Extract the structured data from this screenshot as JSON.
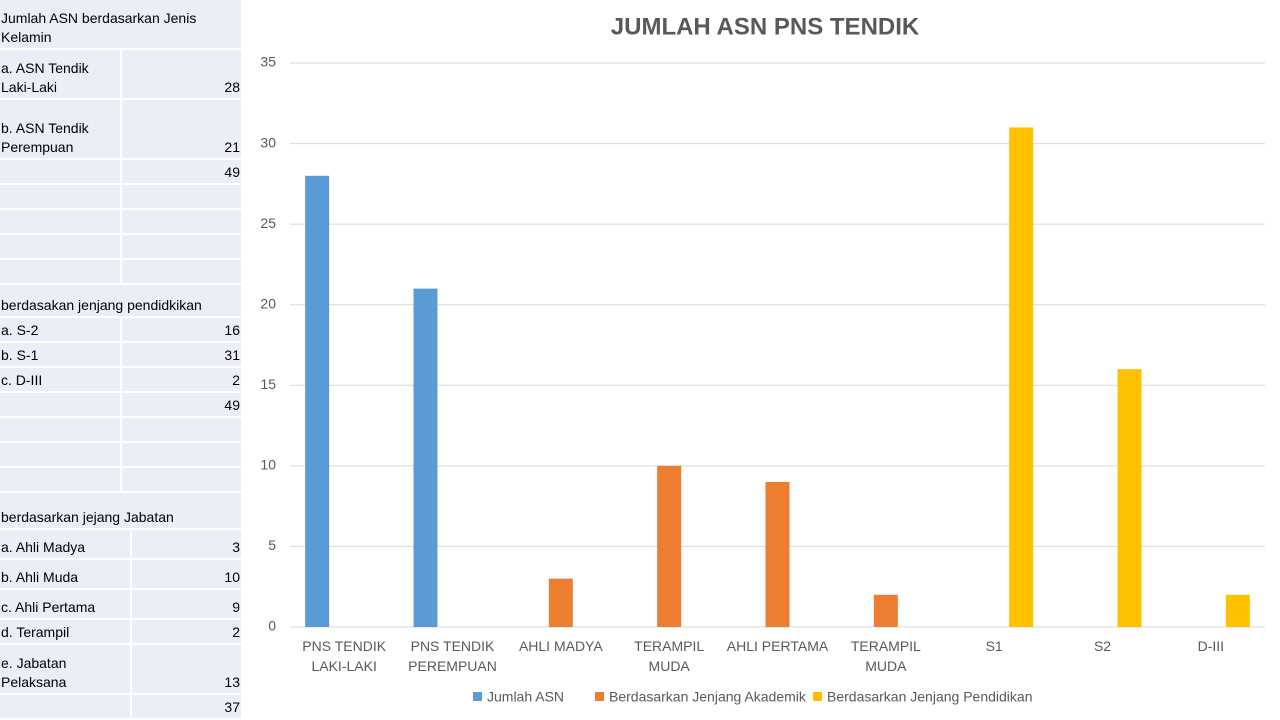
{
  "chart_data": {
    "type": "bar",
    "title": "JUMLAH ASN PNS TENDIK",
    "categories": [
      [
        "PNS TENDIK",
        "LAKI-LAKI"
      ],
      [
        "PNS TENDIK",
        "PEREMPUAN"
      ],
      [
        "AHLI MADYA"
      ],
      [
        "TERAMPIL",
        "MUDA"
      ],
      [
        "AHLI PERTAMA"
      ],
      [
        "TERAMPIL",
        "MUDA"
      ],
      [
        "S1"
      ],
      [
        "S2"
      ],
      [
        "D-III"
      ]
    ],
    "series": [
      {
        "name": "Jumlah ASN",
        "color": "#5b9bd5",
        "values": [
          28,
          21,
          null,
          null,
          null,
          null,
          null,
          null,
          null
        ]
      },
      {
        "name": "Berdasarkan Jenjang Akademik",
        "color": "#ed7d31",
        "values": [
          null,
          null,
          3,
          10,
          9,
          2,
          null,
          null,
          null
        ]
      },
      {
        "name": "Berdasarkan Jenjang Pendidikan",
        "color": "#ffc000",
        "values": [
          null,
          null,
          null,
          null,
          null,
          null,
          31,
          16,
          2
        ]
      }
    ],
    "ylim": [
      0,
      35
    ],
    "yticks": [
      0,
      5,
      10,
      15,
      20,
      25,
      30,
      35
    ],
    "grid": true,
    "legend": "bottom"
  },
  "table": {
    "sections": [
      {
        "title": "Jumlah ASN berdasarkan Jenis Kelamin",
        "rows": [
          {
            "label": "a. ASN Tendik Laki-Laki",
            "value": 28
          },
          {
            "label": "b. ASN Tendik Perempuan",
            "value": 21
          }
        ],
        "total": 49
      },
      {
        "title": "berdasakan jenjang pendidkikan",
        "rows": [
          {
            "label": "a. S-2",
            "value": 16
          },
          {
            "label": "b. S-1",
            "value": 31
          },
          {
            "label": "c. D-III",
            "value": 2
          }
        ],
        "total": 49
      },
      {
        "title": "berdasarkan jejang Jabatan",
        "rows": [
          {
            "label": "a. Ahli Madya",
            "value": 3
          },
          {
            "label": "b. Ahli Muda",
            "value": 10
          },
          {
            "label": "c. Ahli Pertama",
            "value": 9
          },
          {
            "label": "d. Terampil",
            "value": 2
          },
          {
            "label": "e. Jabatan Pelaksana",
            "value": 13
          }
        ],
        "total": 37
      }
    ]
  }
}
